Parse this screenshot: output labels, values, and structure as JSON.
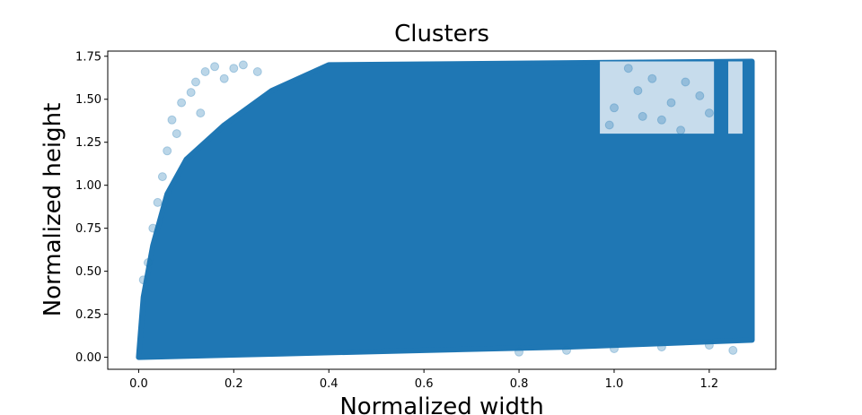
{
  "chart_data": {
    "type": "scatter",
    "title": "Clusters",
    "xlabel": "Normalized width",
    "ylabel": "Normalized height",
    "xlim": [
      -0.065,
      1.34
    ],
    "ylim": [
      -0.07,
      1.78
    ],
    "xticks": [
      0.0,
      0.2,
      0.4,
      0.6,
      0.8,
      1.0,
      1.2
    ],
    "yticks": [
      0.0,
      0.25,
      0.5,
      0.75,
      1.0,
      1.25,
      1.5,
      1.75
    ],
    "xtick_labels": [
      "0.0",
      "0.2",
      "0.4",
      "0.6",
      "0.8",
      "1.0",
      "1.2"
    ],
    "ytick_labels": [
      "0.00",
      "0.25",
      "0.50",
      "0.75",
      "1.00",
      "1.25",
      "1.50",
      "1.75"
    ],
    "marker_color": "#1f77b4",
    "marker_alpha": 0.3,
    "grid": false,
    "legend": "none",
    "dense_region": {
      "description": "points fill nearly the whole plot area",
      "x_range": [
        0.0,
        1.29
      ],
      "y_range": [
        0.0,
        1.72
      ],
      "lower_left_boundary": [
        [
          0.0,
          0.0
        ],
        [
          0.01,
          0.35
        ],
        [
          0.03,
          0.65
        ],
        [
          0.06,
          0.95
        ],
        [
          0.1,
          1.15
        ],
        [
          0.18,
          1.35
        ],
        [
          0.28,
          1.55
        ],
        [
          0.4,
          1.7
        ],
        [
          1.29,
          1.72
        ]
      ],
      "bottom_edge": [
        [
          0.0,
          0.0
        ],
        [
          0.3,
          0.02
        ],
        [
          0.6,
          0.04
        ],
        [
          0.9,
          0.06
        ],
        [
          1.1,
          0.08
        ],
        [
          1.29,
          0.1
        ]
      ]
    },
    "sparse_regions": [
      {
        "x_range": [
          0.97,
          1.21
        ],
        "y_range": [
          1.3,
          1.72
        ]
      },
      {
        "x_range": [
          1.24,
          1.27
        ],
        "y_range": [
          1.3,
          1.72
        ]
      }
    ],
    "sample_points": [
      [
        0.07,
        1.38
      ],
      [
        0.09,
        1.48
      ],
      [
        0.11,
        1.54
      ],
      [
        0.12,
        1.6
      ],
      [
        0.14,
        1.66
      ],
      [
        0.16,
        1.69
      ],
      [
        0.08,
        1.3
      ],
      [
        0.06,
        1.2
      ],
      [
        0.05,
        1.05
      ],
      [
        0.04,
        0.9
      ],
      [
        0.03,
        0.75
      ],
      [
        0.02,
        0.55
      ],
      [
        0.01,
        0.45
      ],
      [
        0.18,
        1.62
      ],
      [
        0.2,
        1.68
      ],
      [
        0.22,
        1.7
      ],
      [
        0.25,
        1.66
      ],
      [
        0.13,
        1.42
      ],
      [
        1.0,
        1.45
      ],
      [
        1.05,
        1.55
      ],
      [
        1.1,
        1.38
      ],
      [
        1.15,
        1.6
      ],
      [
        1.03,
        1.68
      ],
      [
        1.12,
        1.48
      ],
      [
        1.18,
        1.52
      ],
      [
        1.08,
        1.62
      ],
      [
        0.99,
        1.35
      ],
      [
        1.2,
        1.42
      ],
      [
        1.14,
        1.32
      ],
      [
        1.06,
        1.4
      ],
      [
        0.9,
        0.04
      ],
      [
        1.0,
        0.05
      ],
      [
        1.1,
        0.06
      ],
      [
        1.2,
        0.07
      ],
      [
        1.25,
        0.04
      ],
      [
        0.8,
        0.03
      ]
    ]
  }
}
